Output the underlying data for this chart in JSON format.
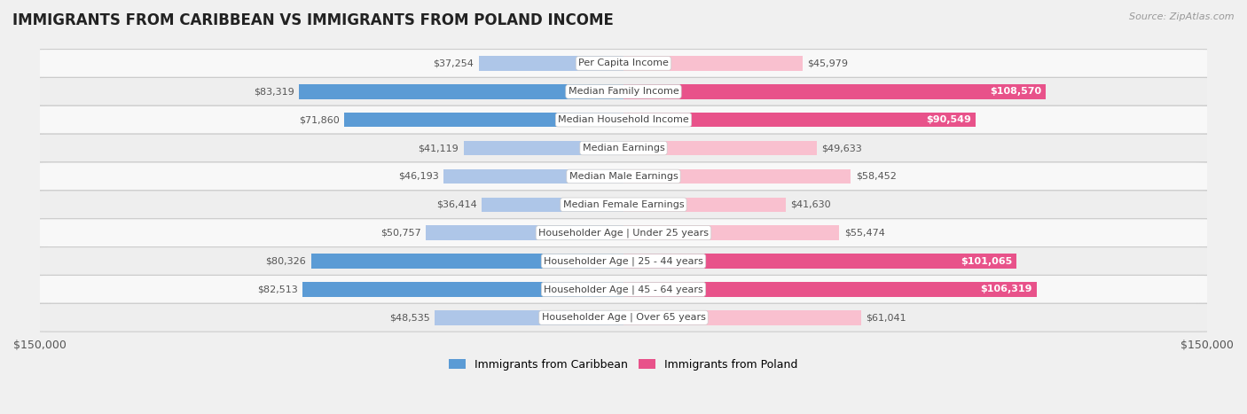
{
  "title": "IMMIGRANTS FROM CARIBBEAN VS IMMIGRANTS FROM POLAND INCOME",
  "source": "Source: ZipAtlas.com",
  "categories": [
    "Per Capita Income",
    "Median Family Income",
    "Median Household Income",
    "Median Earnings",
    "Median Male Earnings",
    "Median Female Earnings",
    "Householder Age | Under 25 years",
    "Householder Age | 25 - 44 years",
    "Householder Age | 45 - 64 years",
    "Householder Age | Over 65 years"
  ],
  "caribbean_values": [
    37254,
    83319,
    71860,
    41119,
    46193,
    36414,
    50757,
    80326,
    82513,
    48535
  ],
  "poland_values": [
    45979,
    108570,
    90549,
    49633,
    58452,
    41630,
    55474,
    101065,
    106319,
    61041
  ],
  "caribbean_color_light": "#aec6e8",
  "caribbean_color_dark": "#5b9bd5",
  "poland_color_light": "#f9c0cf",
  "poland_color_dark": "#e8528a",
  "caribbean_label": "Immigrants from Caribbean",
  "poland_label": "Immigrants from Poland",
  "max_value": 150000,
  "bar_height": 0.52,
  "background_color": "#f0f0f0",
  "row_bg_colors": [
    "#f8f8f8",
    "#eeeeee"
  ],
  "title_fontsize": 12,
  "label_fontsize": 8,
  "value_fontsize": 8,
  "legend_fontsize": 9,
  "inside_threshold": 0.55
}
